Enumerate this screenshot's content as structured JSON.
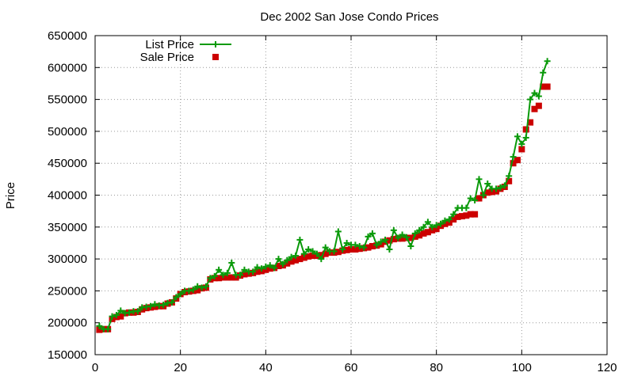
{
  "chart_data": {
    "type": "line",
    "title": "Dec 2002 San Jose Condo Prices",
    "xlabel": "",
    "ylabel": "Price",
    "xlim": [
      0,
      120
    ],
    "ylim": [
      150000,
      650000
    ],
    "x_ticks": [
      0,
      20,
      40,
      60,
      80,
      100,
      120
    ],
    "y_ticks": [
      150000,
      200000,
      250000,
      300000,
      350000,
      400000,
      450000,
      500000,
      550000,
      600000,
      650000
    ],
    "grid": true,
    "legend_position": "top-left",
    "series": [
      {
        "name": "List Price",
        "style": "line+plus",
        "color": "#0a9a0a",
        "x": [
          1,
          2,
          3,
          4,
          5,
          6,
          7,
          8,
          9,
          10,
          11,
          12,
          13,
          14,
          15,
          16,
          17,
          18,
          19,
          20,
          21,
          22,
          23,
          24,
          25,
          26,
          27,
          28,
          29,
          30,
          31,
          32,
          33,
          34,
          35,
          36,
          37,
          38,
          39,
          40,
          41,
          42,
          43,
          44,
          45,
          46,
          47,
          48,
          49,
          50,
          51,
          52,
          53,
          54,
          55,
          56,
          57,
          58,
          59,
          60,
          61,
          62,
          63,
          64,
          65,
          66,
          67,
          68,
          69,
          70,
          71,
          72,
          73,
          74,
          75,
          76,
          77,
          78,
          79,
          80,
          81,
          82,
          83,
          84,
          85,
          86,
          87,
          88,
          89,
          90,
          91,
          92,
          93,
          94,
          95,
          96,
          97,
          98,
          99,
          100,
          101,
          102,
          103,
          104,
          105,
          106
        ],
        "y": [
          195000,
          190000,
          190000,
          210000,
          212000,
          219000,
          215000,
          216000,
          218000,
          218000,
          224000,
          225000,
          226000,
          229000,
          227000,
          228000,
          231000,
          232000,
          240000,
          245000,
          250000,
          250000,
          252000,
          257000,
          255000,
          257000,
          270000,
          273000,
          283000,
          275000,
          278000,
          294000,
          275000,
          275000,
          283000,
          280000,
          280000,
          287000,
          285000,
          288000,
          290000,
          286000,
          300000,
          292000,
          298000,
          303000,
          305000,
          330000,
          308000,
          315000,
          312000,
          308000,
          300000,
          318000,
          312000,
          312000,
          343000,
          315000,
          325000,
          322000,
          322000,
          320000,
          318000,
          335000,
          340000,
          322000,
          327000,
          330000,
          315000,
          345000,
          333000,
          338000,
          334000,
          320000,
          340000,
          345000,
          350000,
          358000,
          350000,
          353000,
          355000,
          360000,
          362000,
          370000,
          380000,
          380000,
          380000,
          395000,
          392000,
          425000,
          400000,
          418000,
          410000,
          410000,
          412000,
          415000,
          430000,
          460000,
          492000,
          480000,
          490000,
          550000,
          560000,
          555000,
          592000,
          610000
        ]
      },
      {
        "name": "Sale Price",
        "style": "square",
        "color": "#cc0000",
        "x": [
          1,
          2,
          3,
          4,
          5,
          6,
          7,
          8,
          9,
          10,
          11,
          12,
          13,
          14,
          15,
          16,
          17,
          18,
          19,
          20,
          21,
          22,
          23,
          24,
          25,
          26,
          27,
          28,
          29,
          30,
          31,
          32,
          33,
          34,
          35,
          36,
          37,
          38,
          39,
          40,
          41,
          42,
          43,
          44,
          45,
          46,
          47,
          48,
          49,
          50,
          51,
          52,
          53,
          54,
          55,
          56,
          57,
          58,
          59,
          60,
          61,
          62,
          63,
          64,
          65,
          66,
          67,
          68,
          69,
          70,
          71,
          72,
          73,
          74,
          75,
          76,
          77,
          78,
          79,
          80,
          81,
          82,
          83,
          84,
          85,
          86,
          87,
          88,
          89,
          90,
          91,
          92,
          93,
          94,
          95,
          96,
          97,
          98,
          99,
          100,
          101,
          102,
          103,
          104,
          105,
          106
        ],
        "y": [
          189000,
          190000,
          190000,
          206000,
          209000,
          210000,
          215000,
          216000,
          216000,
          217000,
          221000,
          223000,
          224000,
          225000,
          226000,
          226000,
          230000,
          232000,
          238000,
          245000,
          248000,
          249000,
          250000,
          251000,
          254000,
          255000,
          268000,
          270000,
          270000,
          271000,
          271000,
          271000,
          271000,
          274000,
          276000,
          277000,
          278000,
          280000,
          281000,
          283000,
          285000,
          286000,
          289000,
          290000,
          293000,
          296000,
          298000,
          300000,
          302000,
          304000,
          305000,
          305000,
          306000,
          308000,
          310000,
          310000,
          311000,
          313000,
          314000,
          315000,
          315000,
          316000,
          317000,
          318000,
          320000,
          321000,
          323000,
          327000,
          329000,
          331000,
          332000,
          332000,
          333000,
          333000,
          335000,
          337000,
          340000,
          342000,
          345000,
          347000,
          352000,
          355000,
          357000,
          362000,
          366000,
          367000,
          368000,
          370000,
          370000,
          395000,
          400000,
          404000,
          405000,
          406000,
          410000,
          413000,
          422000,
          450000,
          455000,
          472000,
          503000,
          514000,
          535000,
          540000,
          570000,
          570000
        ]
      }
    ]
  }
}
